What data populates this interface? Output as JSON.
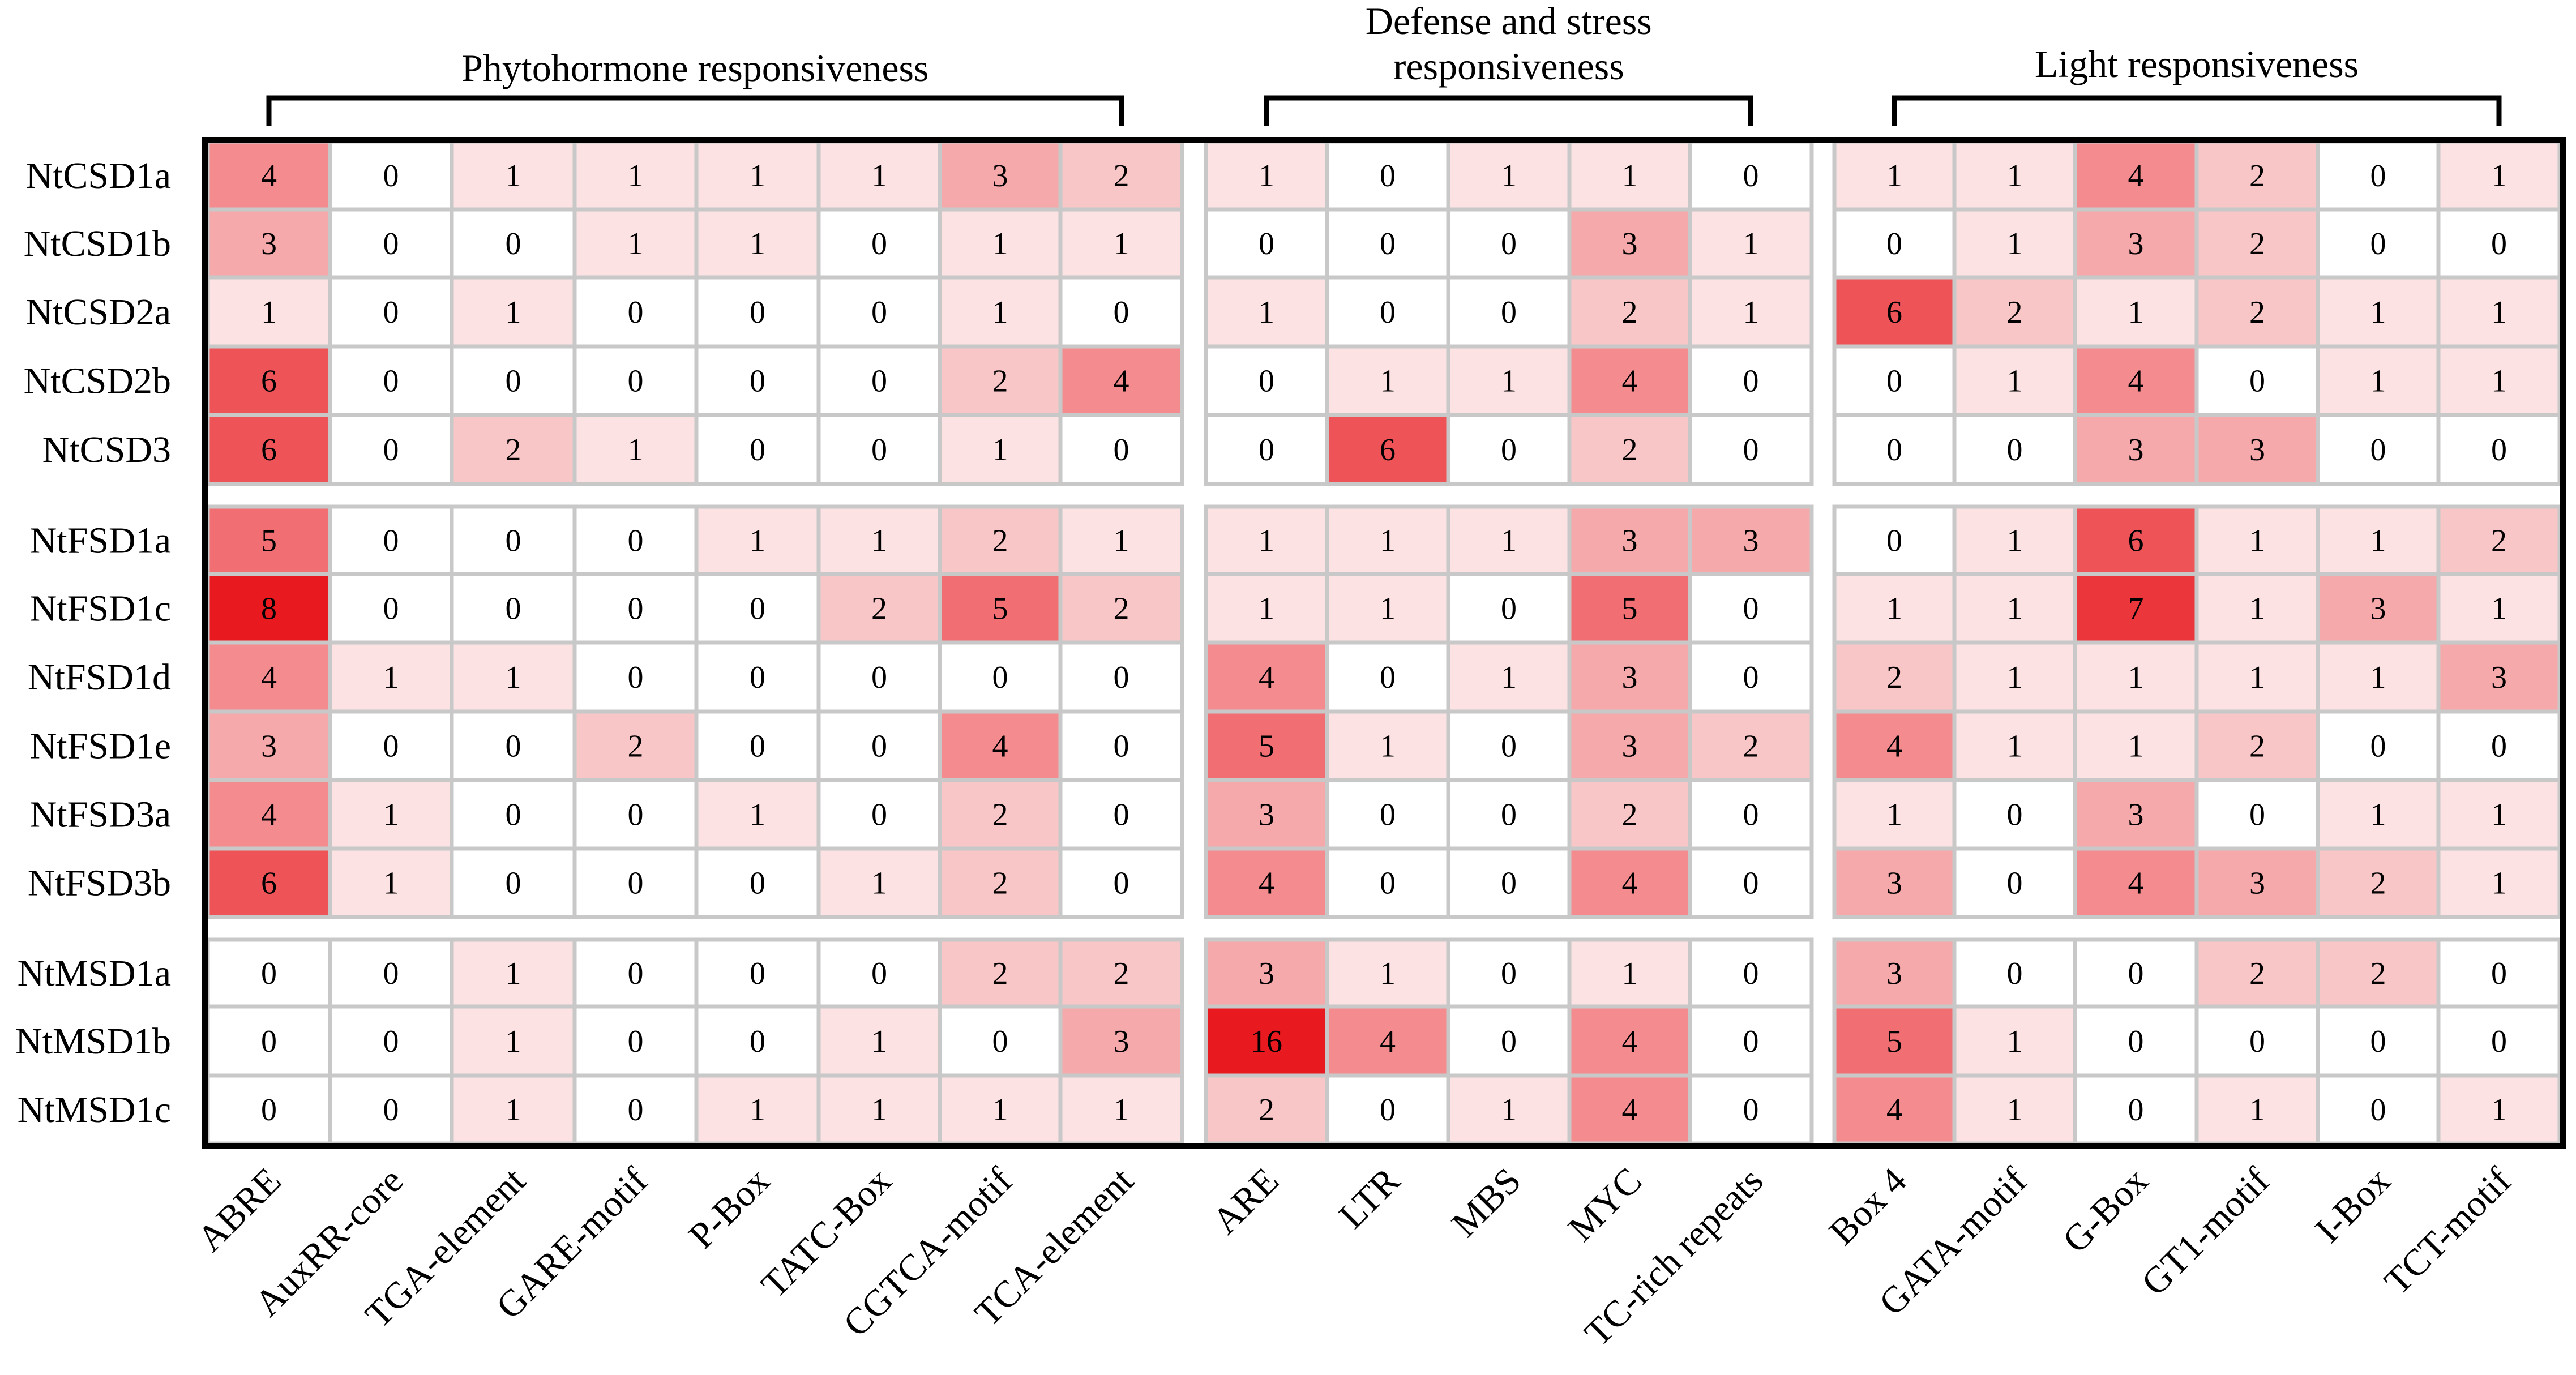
{
  "chart_data": {
    "type": "heatmap",
    "title": "",
    "xlabel": "",
    "ylabel": "",
    "color_scale": {
      "low": "#ffffff",
      "high": "#e8191f",
      "min": 0,
      "max": 8
    },
    "column_groups": [
      {
        "name": "Phytohormone responsiveness",
        "columns": [
          "ABRE",
          "AuxRR-core",
          "TGA-element",
          "GARE-motif",
          "P-Box",
          "TATC-Box",
          "CGTCA-motif",
          "TCA-element"
        ]
      },
      {
        "name": "Defense and stress responsiveness",
        "columns": [
          "ARE",
          "LTR",
          "MBS",
          "MYC",
          "TC-rich repeats"
        ]
      },
      {
        "name": "Light responsiveness",
        "columns": [
          "Box 4",
          "GATA-motif",
          "G-Box",
          "GT1-motif",
          "I-Box",
          "TCT-motif"
        ]
      }
    ],
    "columns": [
      "ABRE",
      "AuxRR-core",
      "TGA-element",
      "GARE-motif",
      "P-Box",
      "TATC-Box",
      "CGTCA-motif",
      "TCA-element",
      "ARE",
      "LTR",
      "MBS",
      "MYC",
      "TC-rich repeats",
      "Box 4",
      "GATA-motif",
      "G-Box",
      "GT1-motif",
      "I-Box",
      "TCT-motif"
    ],
    "row_groups": [
      [
        "NtCSD1a",
        "NtCSD1b",
        "NtCSD2a",
        "NtCSD2b",
        "NtCSD3"
      ],
      [
        "NtFSD1a",
        "NtFSD1c",
        "NtFSD1d",
        "NtFSD1e",
        "NtFSD3a",
        "NtFSD3b"
      ],
      [
        "NtMSD1a",
        "NtMSD1b",
        "NtMSD1c"
      ]
    ],
    "rows": [
      "NtCSD1a",
      "NtCSD1b",
      "NtCSD2a",
      "NtCSD2b",
      "NtCSD3",
      "NtFSD1a",
      "NtFSD1c",
      "NtFSD1d",
      "NtFSD1e",
      "NtFSD3a",
      "NtFSD3b",
      "NtMSD1a",
      "NtMSD1b",
      "NtMSD1c"
    ],
    "values": [
      [
        4,
        0,
        1,
        1,
        1,
        1,
        3,
        2,
        1,
        0,
        1,
        1,
        0,
        1,
        1,
        4,
        2,
        0,
        1
      ],
      [
        3,
        0,
        0,
        1,
        1,
        0,
        1,
        1,
        0,
        0,
        0,
        3,
        1,
        0,
        1,
        3,
        2,
        0,
        0
      ],
      [
        1,
        0,
        1,
        0,
        0,
        0,
        1,
        0,
        1,
        0,
        0,
        2,
        1,
        6,
        2,
        1,
        2,
        1,
        1
      ],
      [
        6,
        0,
        0,
        0,
        0,
        0,
        2,
        4,
        0,
        1,
        1,
        4,
        0,
        0,
        1,
        4,
        0,
        1,
        1
      ],
      [
        6,
        0,
        2,
        1,
        0,
        0,
        1,
        0,
        0,
        6,
        0,
        2,
        0,
        0,
        0,
        3,
        3,
        0,
        0
      ],
      [
        5,
        0,
        0,
        0,
        1,
        1,
        2,
        1,
        1,
        1,
        1,
        3,
        3,
        0,
        1,
        6,
        1,
        1,
        2
      ],
      [
        8,
        0,
        0,
        0,
        0,
        2,
        5,
        2,
        1,
        1,
        0,
        5,
        0,
        1,
        1,
        7,
        1,
        3,
        1
      ],
      [
        4,
        1,
        1,
        0,
        0,
        0,
        0,
        0,
        4,
        0,
        1,
        3,
        0,
        2,
        1,
        1,
        1,
        1,
        3
      ],
      [
        3,
        0,
        0,
        2,
        0,
        0,
        4,
        0,
        5,
        1,
        0,
        3,
        2,
        4,
        1,
        1,
        2,
        0,
        0
      ],
      [
        4,
        1,
        0,
        0,
        1,
        0,
        2,
        0,
        3,
        0,
        0,
        2,
        0,
        1,
        0,
        3,
        0,
        1,
        1
      ],
      [
        6,
        1,
        0,
        0,
        0,
        1,
        2,
        0,
        4,
        0,
        0,
        4,
        0,
        3,
        0,
        4,
        3,
        2,
        1
      ],
      [
        0,
        0,
        1,
        0,
        0,
        0,
        2,
        2,
        3,
        1,
        0,
        1,
        0,
        3,
        0,
        0,
        2,
        2,
        0
      ],
      [
        0,
        0,
        1,
        0,
        0,
        1,
        0,
        3,
        16,
        4,
        0,
        4,
        0,
        5,
        1,
        0,
        0,
        0,
        0
      ],
      [
        0,
        0,
        1,
        0,
        1,
        1,
        1,
        1,
        2,
        0,
        1,
        4,
        0,
        4,
        1,
        0,
        1,
        0,
        1
      ]
    ]
  }
}
